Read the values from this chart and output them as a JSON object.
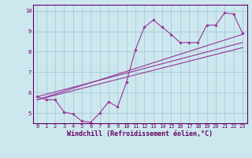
{
  "xlabel": "Windchill (Refroidissement éolien,°C)",
  "background_color": "#cce8ee",
  "line_color": "#993399",
  "xlim": [
    -0.5,
    23.5
  ],
  "ylim": [
    4.5,
    10.3
  ],
  "yticks": [
    5,
    6,
    7,
    8,
    9,
    10
  ],
  "xticks": [
    0,
    1,
    2,
    3,
    4,
    5,
    6,
    7,
    8,
    9,
    10,
    11,
    12,
    13,
    14,
    15,
    16,
    17,
    18,
    19,
    20,
    21,
    22,
    23
  ],
  "series1_x": [
    0,
    1,
    2,
    3,
    4,
    5,
    6,
    7,
    8,
    9,
    10,
    11,
    12,
    13,
    14,
    15,
    16,
    17,
    18,
    19,
    20,
    21,
    22,
    23
  ],
  "series1_y": [
    5.8,
    5.65,
    5.65,
    5.05,
    4.95,
    4.6,
    4.55,
    5.0,
    5.55,
    5.3,
    6.5,
    8.1,
    9.2,
    9.55,
    9.2,
    8.85,
    8.45,
    8.45,
    8.45,
    9.3,
    9.3,
    9.9,
    9.85,
    8.9
  ],
  "series2_x": [
    0,
    23
  ],
  "series2_y": [
    5.8,
    8.45
  ],
  "series3_x": [
    0,
    23
  ],
  "series3_y": [
    5.65,
    8.85
  ],
  "series4_x": [
    0,
    23
  ],
  "series4_y": [
    5.65,
    8.2
  ],
  "figsize": [
    3.2,
    2.0
  ],
  "dpi": 100,
  "grid_color": "#99bbcc",
  "tick_fontsize": 5.0,
  "xlabel_fontsize": 6.0,
  "lw": 0.8,
  "marker_size": 1.8
}
